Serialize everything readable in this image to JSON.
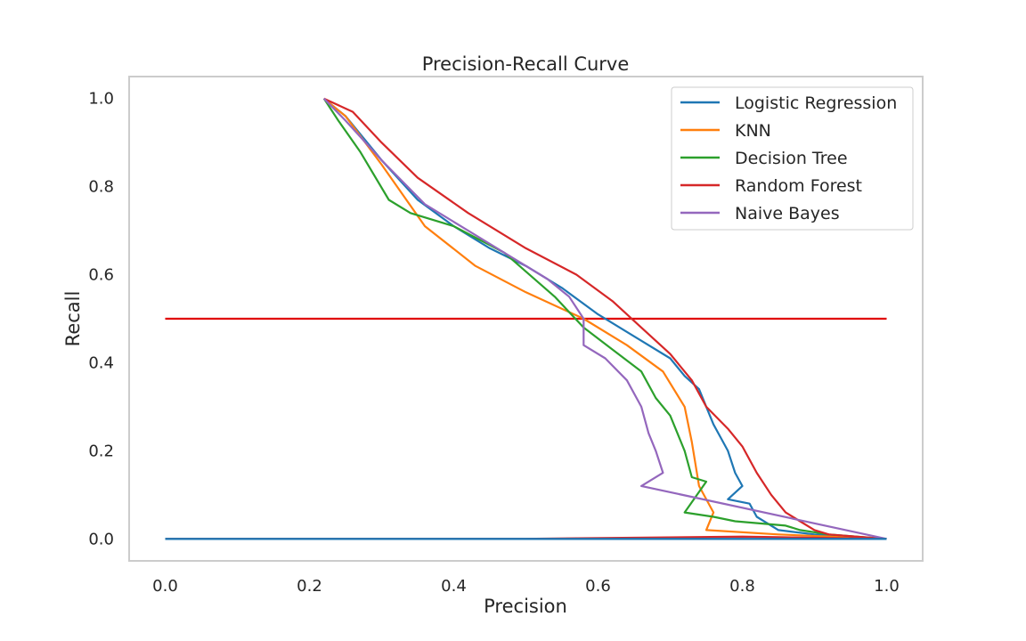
{
  "chart_data": {
    "type": "line",
    "title": "Precision-Recall Curve",
    "xlabel": "Precision",
    "ylabel": "Recall",
    "xlim": [
      -0.05,
      1.05
    ],
    "ylim": [
      -0.05,
      1.05
    ],
    "x_ticks": [
      "0.0",
      "0.2",
      "0.4",
      "0.6",
      "0.8",
      "1.0"
    ],
    "y_ticks": [
      "0.0",
      "0.2",
      "0.4",
      "0.6",
      "0.8",
      "1.0"
    ],
    "grid": false,
    "legend_position": "top-right",
    "reference_line": {
      "y": 0.5,
      "x_range": [
        0.0,
        1.0
      ],
      "color": "#e00000"
    },
    "series": [
      {
        "name": "Logistic Regression",
        "color": "#1f77b4",
        "points": [
          [
            0.22,
            1.0
          ],
          [
            0.25,
            0.96
          ],
          [
            0.3,
            0.86
          ],
          [
            0.35,
            0.77
          ],
          [
            0.4,
            0.71
          ],
          [
            0.45,
            0.66
          ],
          [
            0.5,
            0.62
          ],
          [
            0.55,
            0.57
          ],
          [
            0.6,
            0.51
          ],
          [
            0.65,
            0.46
          ],
          [
            0.7,
            0.41
          ],
          [
            0.72,
            0.37
          ],
          [
            0.74,
            0.34
          ],
          [
            0.75,
            0.3
          ],
          [
            0.76,
            0.26
          ],
          [
            0.77,
            0.23
          ],
          [
            0.78,
            0.2
          ],
          [
            0.79,
            0.15
          ],
          [
            0.8,
            0.12
          ],
          [
            0.78,
            0.09
          ],
          [
            0.81,
            0.08
          ],
          [
            0.82,
            0.05
          ],
          [
            0.85,
            0.02
          ],
          [
            0.9,
            0.01
          ],
          [
            1.0,
            0.0
          ]
        ]
      },
      {
        "name": "KNN",
        "color": "#ff7f0e",
        "points": [
          [
            0.22,
            1.0
          ],
          [
            0.25,
            0.96
          ],
          [
            0.3,
            0.85
          ],
          [
            0.36,
            0.71
          ],
          [
            0.43,
            0.62
          ],
          [
            0.5,
            0.56
          ],
          [
            0.58,
            0.5
          ],
          [
            0.64,
            0.44
          ],
          [
            0.69,
            0.38
          ],
          [
            0.72,
            0.3
          ],
          [
            0.73,
            0.22
          ],
          [
            0.74,
            0.12
          ],
          [
            0.76,
            0.06
          ],
          [
            0.75,
            0.02
          ],
          [
            0.85,
            0.01
          ],
          [
            1.0,
            0.0
          ]
        ]
      },
      {
        "name": "Decision Tree",
        "color": "#2ca02c",
        "points": [
          [
            0.22,
            1.0
          ],
          [
            0.24,
            0.95
          ],
          [
            0.27,
            0.88
          ],
          [
            0.31,
            0.77
          ],
          [
            0.34,
            0.74
          ],
          [
            0.4,
            0.71
          ],
          [
            0.47,
            0.65
          ],
          [
            0.54,
            0.55
          ],
          [
            0.58,
            0.48
          ],
          [
            0.62,
            0.43
          ],
          [
            0.66,
            0.38
          ],
          [
            0.68,
            0.32
          ],
          [
            0.7,
            0.28
          ],
          [
            0.72,
            0.2
          ],
          [
            0.73,
            0.14
          ],
          [
            0.75,
            0.13
          ],
          [
            0.72,
            0.06
          ],
          [
            0.76,
            0.05
          ],
          [
            0.79,
            0.04
          ],
          [
            0.86,
            0.03
          ],
          [
            0.88,
            0.02
          ],
          [
            0.92,
            0.01
          ],
          [
            1.0,
            0.0
          ]
        ]
      },
      {
        "name": "Random Forest",
        "color": "#d62728",
        "points": [
          [
            0.22,
            1.0
          ],
          [
            0.26,
            0.97
          ],
          [
            0.3,
            0.9
          ],
          [
            0.35,
            0.82
          ],
          [
            0.42,
            0.74
          ],
          [
            0.5,
            0.66
          ],
          [
            0.57,
            0.6
          ],
          [
            0.62,
            0.54
          ],
          [
            0.66,
            0.48
          ],
          [
            0.7,
            0.42
          ],
          [
            0.73,
            0.36
          ],
          [
            0.75,
            0.3
          ],
          [
            0.78,
            0.25
          ],
          [
            0.8,
            0.21
          ],
          [
            0.82,
            0.15
          ],
          [
            0.84,
            0.1
          ],
          [
            0.86,
            0.06
          ],
          [
            0.88,
            0.04
          ],
          [
            0.9,
            0.02
          ],
          [
            0.92,
            0.01
          ],
          [
            1.0,
            0.0
          ]
        ]
      },
      {
        "name": "Naive Bayes",
        "color": "#9467bd",
        "points": [
          [
            0.22,
            1.0
          ],
          [
            0.25,
            0.95
          ],
          [
            0.3,
            0.86
          ],
          [
            0.36,
            0.76
          ],
          [
            0.42,
            0.7
          ],
          [
            0.48,
            0.64
          ],
          [
            0.53,
            0.59
          ],
          [
            0.56,
            0.55
          ],
          [
            0.58,
            0.5
          ],
          [
            0.58,
            0.44
          ],
          [
            0.61,
            0.41
          ],
          [
            0.64,
            0.36
          ],
          [
            0.66,
            0.3
          ],
          [
            0.67,
            0.24
          ],
          [
            0.68,
            0.2
          ],
          [
            0.69,
            0.15
          ],
          [
            0.66,
            0.12
          ],
          [
            1.0,
            0.0
          ]
        ]
      }
    ],
    "baselines": [
      {
        "color": "#d62728",
        "points": [
          [
            0.0,
            0.0
          ],
          [
            0.5,
            0.0
          ],
          [
            0.8,
            0.005
          ],
          [
            1.0,
            0.0
          ]
        ]
      },
      {
        "color": "#1f77b4",
        "points": [
          [
            0.0,
            0.0
          ],
          [
            1.0,
            0.0
          ]
        ]
      }
    ]
  }
}
